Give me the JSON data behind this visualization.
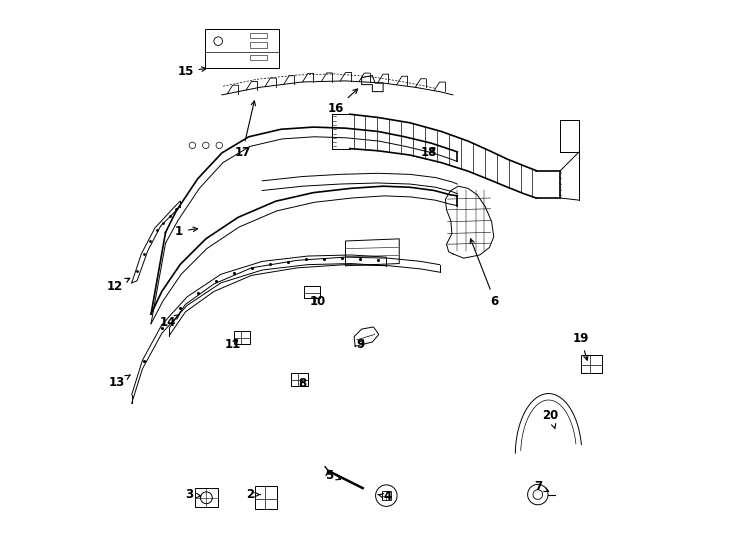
{
  "bg_color": "#ffffff",
  "line_color": "#000000",
  "text_color": "#000000",
  "label_data": [
    [
      1,
      0.15,
      0.572,
      0.192,
      0.578
    ],
    [
      2,
      0.283,
      0.082,
      0.307,
      0.082
    ],
    [
      3,
      0.17,
      0.082,
      0.198,
      0.078
    ],
    [
      4,
      0.538,
      0.078,
      0.52,
      0.082
    ],
    [
      5,
      0.43,
      0.118,
      0.458,
      0.108
    ],
    [
      6,
      0.738,
      0.442,
      0.69,
      0.565
    ],
    [
      7,
      0.818,
      0.097,
      0.845,
      0.085
    ],
    [
      8,
      0.38,
      0.288,
      0.372,
      0.3
    ],
    [
      9,
      0.488,
      0.362,
      0.498,
      0.376
    ],
    [
      10,
      0.408,
      0.442,
      0.398,
      0.456
    ],
    [
      11,
      0.25,
      0.362,
      0.265,
      0.374
    ],
    [
      12,
      0.03,
      0.47,
      0.065,
      0.488
    ],
    [
      13,
      0.035,
      0.29,
      0.065,
      0.308
    ],
    [
      14,
      0.13,
      0.402,
      0.152,
      0.418
    ],
    [
      15,
      0.162,
      0.87,
      0.208,
      0.876
    ],
    [
      16,
      0.442,
      0.8,
      0.488,
      0.842
    ],
    [
      17,
      0.268,
      0.718,
      0.292,
      0.822
    ],
    [
      18,
      0.615,
      0.718,
      0.632,
      0.732
    ],
    [
      19,
      0.898,
      0.372,
      0.912,
      0.325
    ],
    [
      20,
      0.842,
      0.23,
      0.852,
      0.198
    ]
  ]
}
